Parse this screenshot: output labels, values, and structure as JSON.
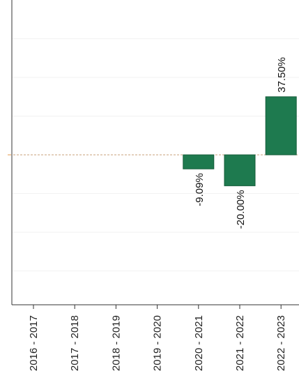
{
  "chart_data": {
    "type": "bar",
    "categories": [
      "2016 - 2017",
      "2017 - 2018",
      "2018 - 2019",
      "2019 - 2020",
      "2020 - 2021",
      "2021 - 2022",
      "2022 - 2023"
    ],
    "values": [
      null,
      null,
      null,
      null,
      -9.09,
      -20.0,
      37.5
    ],
    "data_labels": [
      "",
      "",
      "",
      "",
      "-9.09%",
      "-20.00%",
      "37.50%"
    ],
    "title": "",
    "xlabel": "",
    "ylabel": "",
    "ylim": [
      -100,
      100
    ],
    "grid": true,
    "legend": "none",
    "colors": {
      "bar": "#1e7a4f",
      "bar_edge": "#155c3a",
      "zero_line": "#c8a27a",
      "axis": "#333333",
      "grid": "#f2f2f2"
    }
  }
}
